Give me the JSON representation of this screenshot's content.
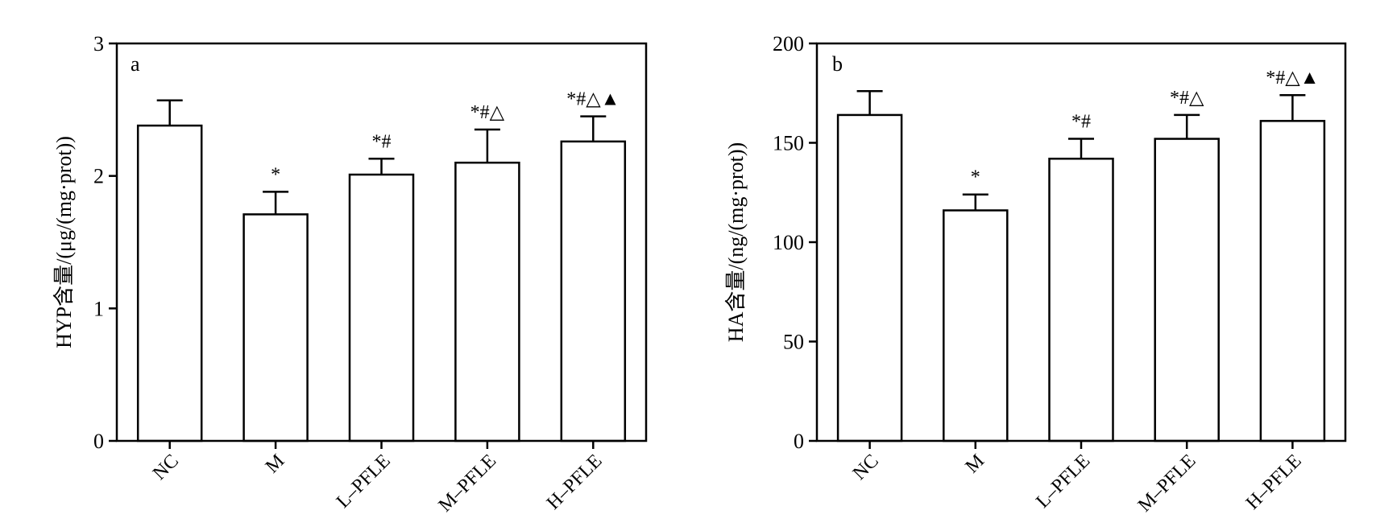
{
  "chart_data": [
    {
      "type": "bar",
      "panel_label": "a",
      "ylabel": "HYP含量/(μg/(mg·prot))",
      "xlabel": "",
      "ylim": [
        0,
        3
      ],
      "yticks": [
        0,
        1,
        2,
        3
      ],
      "categories": [
        "NC",
        "M",
        "L–PFLE",
        "M–PFLE",
        "H–PFLE"
      ],
      "series": [
        {
          "values": [
            2.38,
            1.71,
            2.01,
            2.1,
            2.26
          ],
          "errors": [
            0.19,
            0.17,
            0.12,
            0.25,
            0.19
          ]
        }
      ],
      "annotations": [
        "",
        "*",
        "*#",
        "*#△",
        "*#△▲"
      ]
    },
    {
      "type": "bar",
      "panel_label": "b",
      "ylabel": "HA含量/(ng/(mg·prot))",
      "xlabel": "",
      "ylim": [
        0,
        200
      ],
      "yticks": [
        0,
        50,
        100,
        150,
        200
      ],
      "categories": [
        "NC",
        "M",
        "L–PFLE",
        "M–PFLE",
        "H–PFLE"
      ],
      "series": [
        {
          "values": [
            164,
            116,
            142,
            152,
            161
          ],
          "errors": [
            12,
            8,
            10,
            12,
            13
          ]
        }
      ],
      "annotations": [
        "",
        "*",
        "*#",
        "*#△",
        "*#△▲"
      ]
    }
  ]
}
